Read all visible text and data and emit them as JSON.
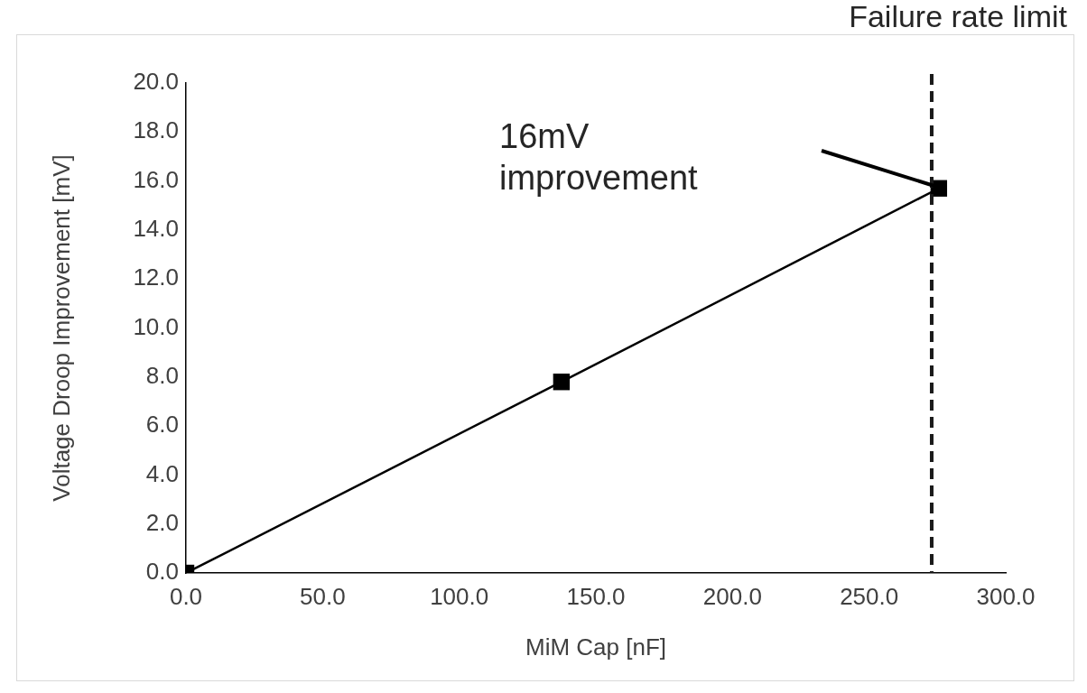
{
  "chart_data": {
    "type": "line",
    "xlabel": "MiM Cap [nF]",
    "ylabel": "Voltage Droop Improvement [mV]",
    "x": [
      0,
      137.4,
      275.5
    ],
    "series": [
      {
        "color": "#000000",
        "values": [
          0,
          7.8,
          15.7
        ]
      }
    ],
    "marker": "square",
    "line_style": "solid",
    "grid": false,
    "legend": false,
    "xlim": [
      0,
      300
    ],
    "xticks": [
      {
        "value": 0,
        "label": "0.0"
      },
      {
        "value": 50,
        "label": "50.0"
      },
      {
        "value": 100,
        "label": "100.0"
      },
      {
        "value": 150,
        "label": "150.0"
      },
      {
        "value": 200,
        "label": "200.0"
      },
      {
        "value": 250,
        "label": "250.0"
      },
      {
        "value": 300,
        "label": "300.0"
      }
    ],
    "ylim": [
      0,
      20
    ],
    "yticks": [
      {
        "value": 0,
        "label": "0.0"
      },
      {
        "value": 2,
        "label": "2.0"
      },
      {
        "value": 4,
        "label": "4.0"
      },
      {
        "value": 6,
        "label": "6.0"
      },
      {
        "value": 8,
        "label": "8.0"
      },
      {
        "value": 10,
        "label": "10.0"
      },
      {
        "value": 12,
        "label": "12.0"
      },
      {
        "value": 14,
        "label": "14.0"
      },
      {
        "value": 16,
        "label": "16.0"
      },
      {
        "value": 18,
        "label": "18.0"
      },
      {
        "value": 20,
        "label": "20.0"
      }
    ],
    "ref_lines": [
      {
        "axis": "x",
        "value": 272.9,
        "label": "Failure rate limit",
        "color": "#1a1a1a",
        "line_style": "dashed"
      }
    ],
    "annotations": [
      "16mV\nimprovement"
    ]
  }
}
